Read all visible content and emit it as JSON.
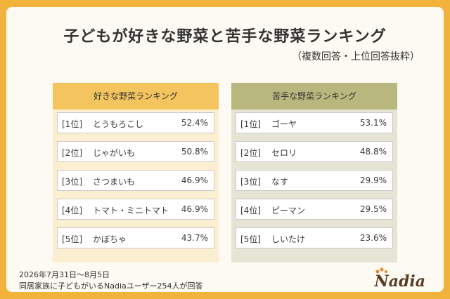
{
  "title": "子どもが好きな野菜と苦手な野菜ランキング",
  "subtitle": "（複数回答・上位回答抜粋）",
  "chart_data": [
    {
      "type": "table",
      "title": "好きな野菜ランキング",
      "rows": [
        {
          "rank": "[1位]",
          "name": "とうもろこし",
          "value": 52.4,
          "value_label": "52.4%"
        },
        {
          "rank": "[2位]",
          "name": "じゃがいも",
          "value": 50.8,
          "value_label": "50.8%"
        },
        {
          "rank": "[3位]",
          "name": "さつまいも",
          "value": 46.9,
          "value_label": "46.9%"
        },
        {
          "rank": "[4位]",
          "name": "トマト・ミニトマト",
          "value": 46.9,
          "value_label": "46.9%"
        },
        {
          "rank": "[5位]",
          "name": "かぼちゃ",
          "value": 43.7,
          "value_label": "43.7%"
        }
      ]
    },
    {
      "type": "table",
      "title": "苦手な野菜ランキング",
      "rows": [
        {
          "rank": "[1位]",
          "name": "ゴーヤ",
          "value": 53.1,
          "value_label": "53.1%"
        },
        {
          "rank": "[2位]",
          "name": "セロリ",
          "value": 48.8,
          "value_label": "48.8%"
        },
        {
          "rank": "[3位]",
          "name": "なす",
          "value": 29.9,
          "value_label": "29.9%"
        },
        {
          "rank": "[4位]",
          "name": "ピーマン",
          "value": 29.5,
          "value_label": "29.5%"
        },
        {
          "rank": "[5位]",
          "name": "しいたけ",
          "value": 23.6,
          "value_label": "23.6%"
        }
      ]
    }
  ],
  "footer": {
    "date": "2026年7月31日～8月5日",
    "note": "同居家族に子どもがいるNadiaユーザー254人が回答"
  },
  "logo": {
    "text": "Nadia",
    "color": "#5A3A22"
  },
  "colors": {
    "background": "#F2B33D",
    "like_header": "#F4C55E",
    "like_body": "#FCEED0",
    "dislike_header": "#B8B77E",
    "dislike_body": "#E6E5D5"
  }
}
